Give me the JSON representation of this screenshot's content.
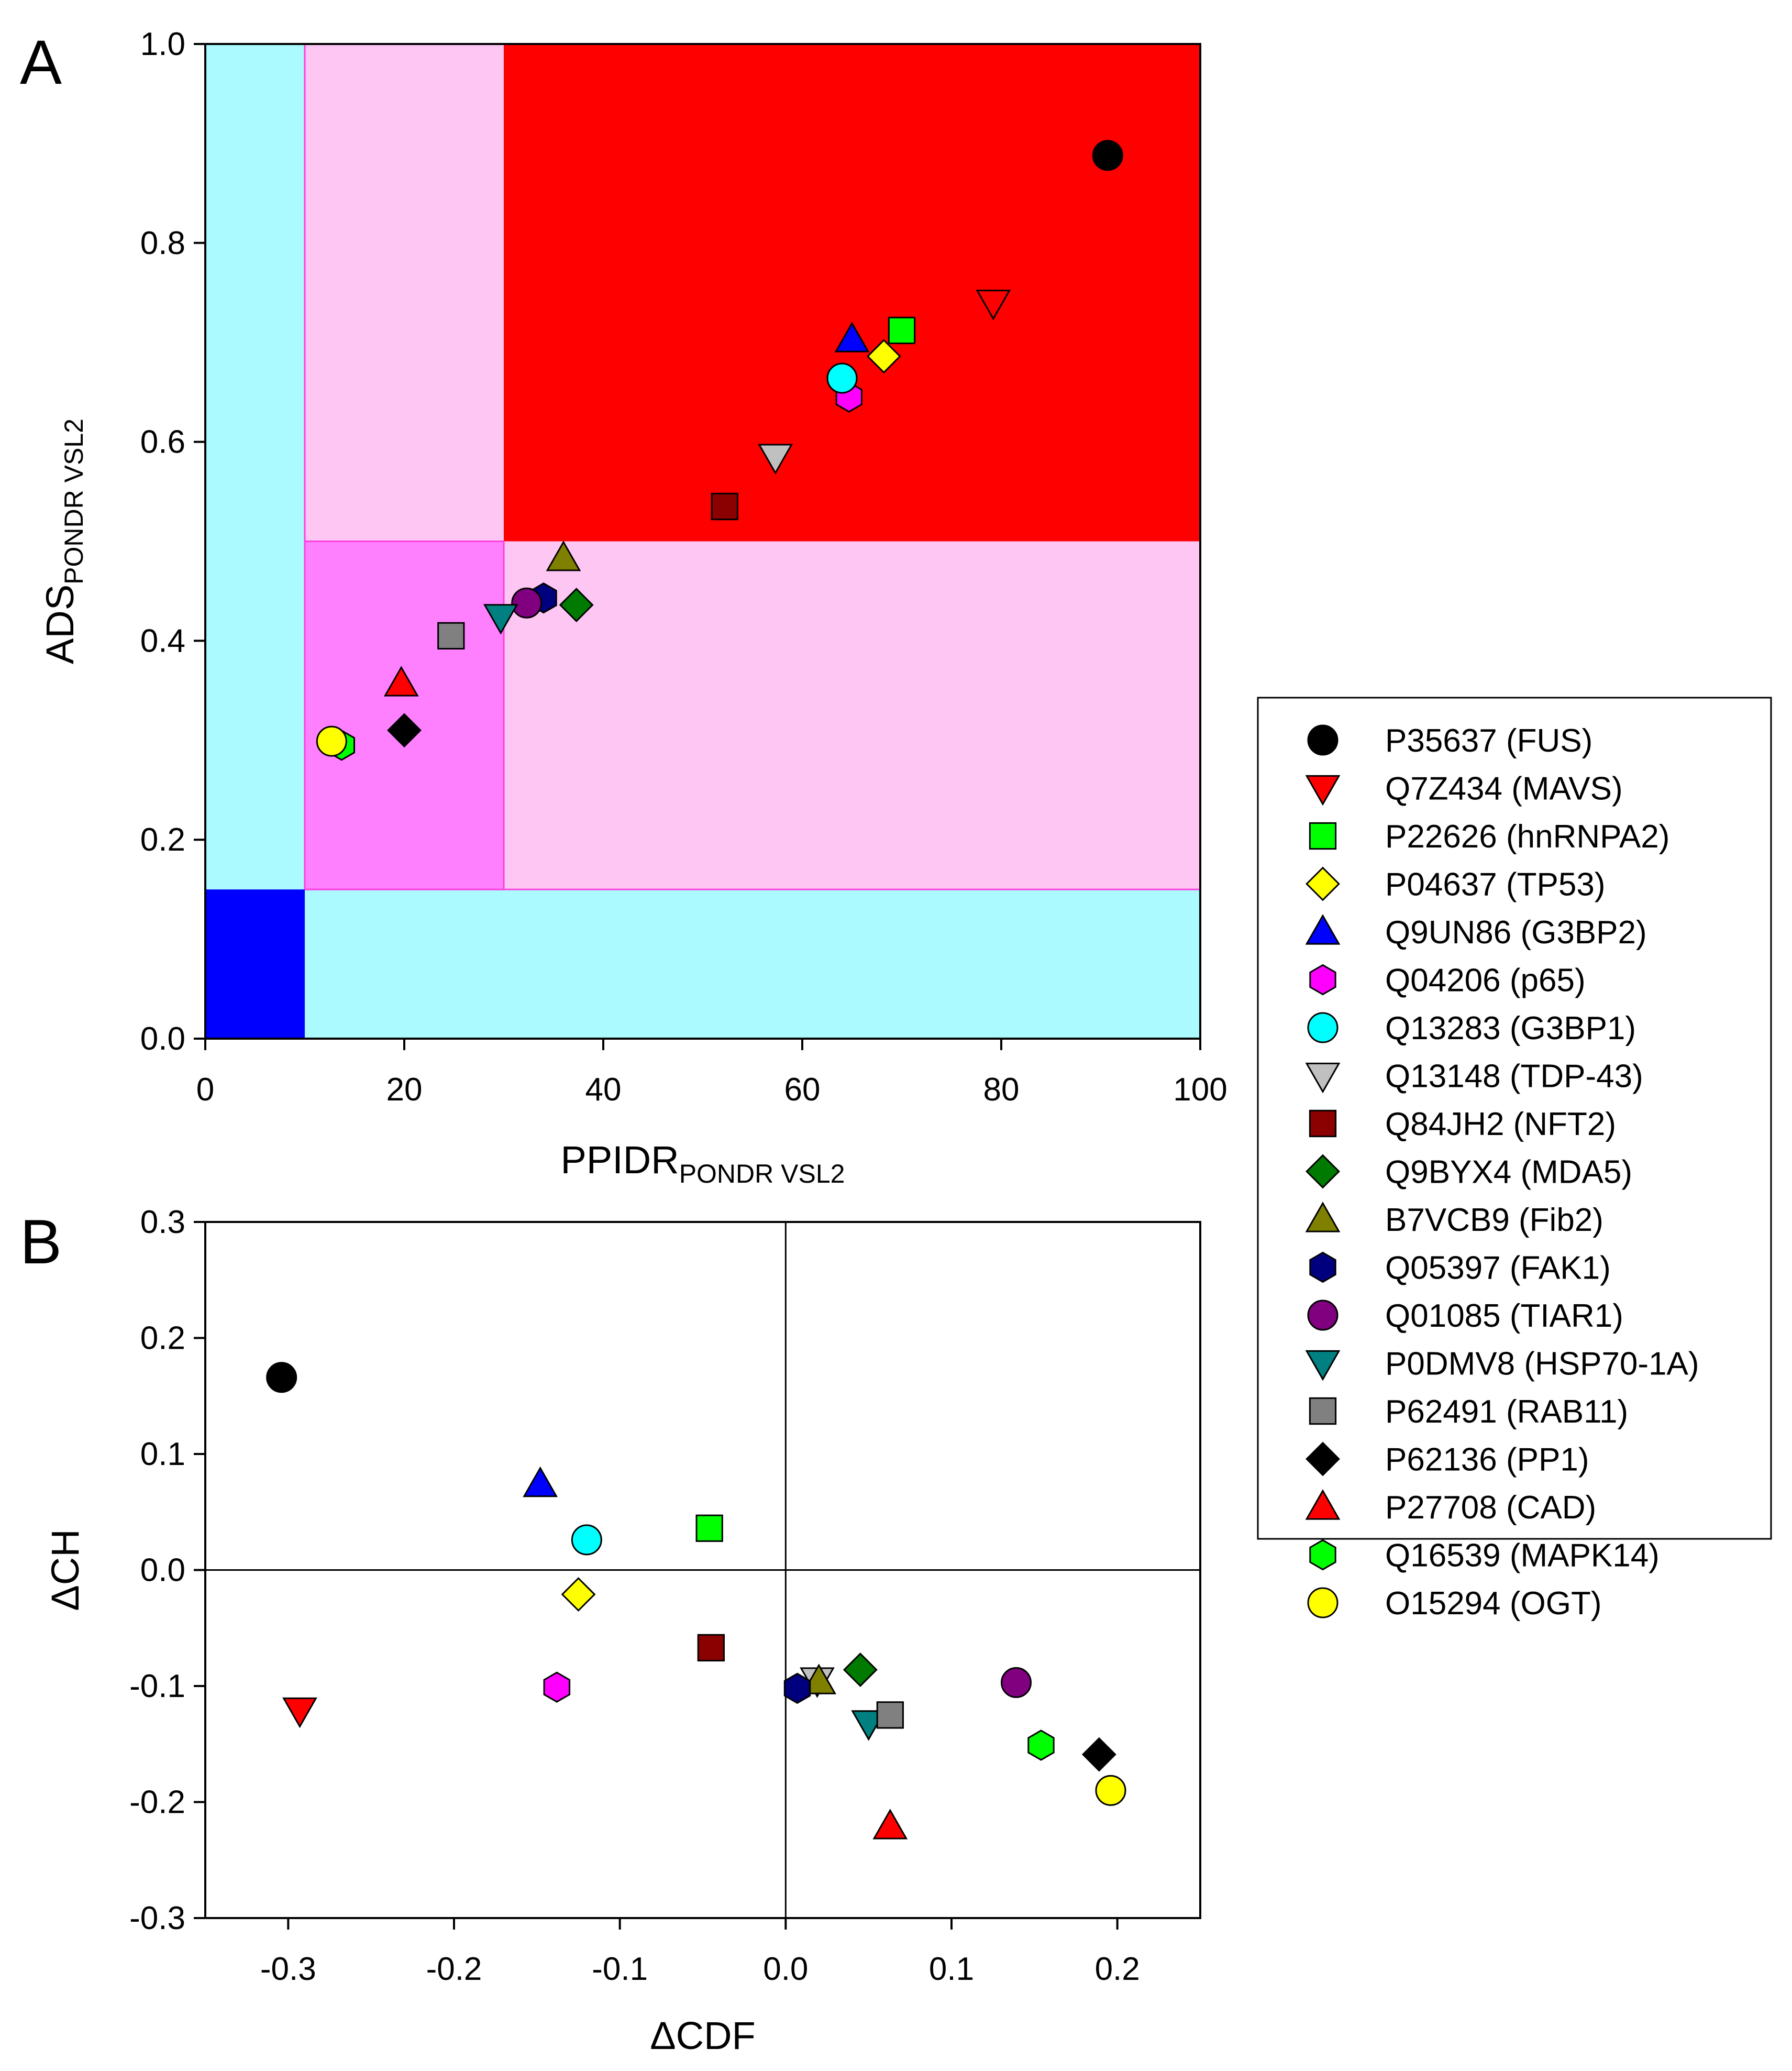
{
  "figure": {
    "panel_labels": [
      "A",
      "B"
    ]
  },
  "colors": {
    "light_cyan": "#aafaff",
    "light_pink": "#fec6f3",
    "magenta_region": "#ff80ff",
    "red_region": "#fe0000",
    "blue_region": "#0000ff",
    "magenta_border": "#ff3fe0"
  },
  "legend": {
    "entries": [
      {
        "label": "P35637 (FUS)",
        "marker": "circle",
        "color": "#000000"
      },
      {
        "label": "Q7Z434 (MAVS)",
        "marker": "triangle-down",
        "color": "#ff0000"
      },
      {
        "label": "P22626 (hnRNPA2)",
        "marker": "square",
        "color": "#00ff00"
      },
      {
        "label": "P04637 (TP53)",
        "marker": "diamond",
        "color": "#ffff00"
      },
      {
        "label": "Q9UN86 (G3BP2)",
        "marker": "triangle-up",
        "color": "#0000ff"
      },
      {
        "label": "Q04206 (p65)",
        "marker": "hexagon",
        "color": "#ff00ff"
      },
      {
        "label": "Q13283 (G3BP1)",
        "marker": "circle",
        "color": "#00ffff"
      },
      {
        "label": "Q13148 (TDP-43)",
        "marker": "triangle-down",
        "color": "#c0c0c0"
      },
      {
        "label": "Q84JH2 (NFT2)",
        "marker": "square",
        "color": "#8b0000"
      },
      {
        "label": "Q9BYX4 (MDA5)",
        "marker": "diamond",
        "color": "#007a00"
      },
      {
        "label": "B7VCB9 (Fib2)",
        "marker": "triangle-up",
        "color": "#808000"
      },
      {
        "label": "Q05397 (FAK1)",
        "marker": "hexagon",
        "color": "#00007f"
      },
      {
        "label": "Q01085 (TIAR1)",
        "marker": "circle",
        "color": "#800080"
      },
      {
        "label": "P0DMV8 (HSP70-1A)",
        "marker": "triangle-down",
        "color": "#008080"
      },
      {
        "label": "P62491 (RAB11)",
        "marker": "square",
        "color": "#808080"
      },
      {
        "label": "P62136 (PP1)",
        "marker": "diamond",
        "color": "#000000"
      },
      {
        "label": "P27708 (CAD)",
        "marker": "triangle-up",
        "color": "#ff0000"
      },
      {
        "label": "Q16539 (MAPK14)",
        "marker": "hexagon",
        "color": "#00ff00"
      },
      {
        "label": "O15294 (OGT)",
        "marker": "circle",
        "color": "#ffff00"
      }
    ]
  },
  "chart_data": [
    {
      "panel": "A",
      "type": "scatter",
      "xlabel": "PPIDR",
      "xlabel_sub": "PONDR VSL2",
      "ylabel": "ADS",
      "ylabel_sub": "PONDR VSL2",
      "xlim": [
        0,
        100
      ],
      "ylim": [
        0.0,
        1.0
      ],
      "xticks": [
        "0",
        "20",
        "40",
        "60",
        "80",
        "100"
      ],
      "yticks": [
        "0.0",
        "0.2",
        "0.4",
        "0.6",
        "0.8",
        "1.0"
      ],
      "regions": [
        {
          "x": [
            0,
            100
          ],
          "y": [
            0,
            1.0
          ],
          "color": "#aafaff"
        },
        {
          "x": [
            10,
            100
          ],
          "y": [
            0.15,
            1.0
          ],
          "color": "#fec6f3"
        },
        {
          "x": [
            30,
            100
          ],
          "y": [
            0.5,
            1.0
          ],
          "color": "#fe0000"
        },
        {
          "x": [
            10,
            30
          ],
          "y": [
            0.15,
            0.5
          ],
          "color": "#ff80ff"
        },
        {
          "x": [
            0,
            10
          ],
          "y": [
            0,
            0.15
          ],
          "color": "#0000ff"
        }
      ],
      "points": [
        {
          "label": "P35637 (FUS)",
          "x": 90.7,
          "y": 0.888
        },
        {
          "label": "Q7Z434 (MAVS)",
          "x": 79.2,
          "y": 0.74
        },
        {
          "label": "P22626 (hnRNPA2)",
          "x": 70.0,
          "y": 0.712
        },
        {
          "label": "P04637 (TP53)",
          "x": 68.2,
          "y": 0.686
        },
        {
          "label": "Q9UN86 (G3BP2)",
          "x": 65.0,
          "y": 0.703
        },
        {
          "label": "Q04206 (p65)",
          "x": 64.7,
          "y": 0.645
        },
        {
          "label": "Q13283 (G3BP1)",
          "x": 64.0,
          "y": 0.664
        },
        {
          "label": "Q13148 (TDP-43)",
          "x": 57.3,
          "y": 0.585
        },
        {
          "label": "Q84JH2 (NFT2)",
          "x": 52.2,
          "y": 0.535
        },
        {
          "label": "Q9BYX4 (MDA5)",
          "x": 37.3,
          "y": 0.436
        },
        {
          "label": "B7VCB9 (Fib2)",
          "x": 36.0,
          "y": 0.483
        },
        {
          "label": "Q05397 (FAK1)",
          "x": 34.0,
          "y": 0.443
        },
        {
          "label": "Q01085 (TIAR1)",
          "x": 32.3,
          "y": 0.438
        },
        {
          "label": "P0DMV8 (HSP70-1A)",
          "x": 29.7,
          "y": 0.424
        },
        {
          "label": "P62491 (RAB11)",
          "x": 24.7,
          "y": 0.405
        },
        {
          "label": "P62136 (PP1)",
          "x": 20.0,
          "y": 0.31
        },
        {
          "label": "P27708 (CAD)",
          "x": 19.7,
          "y": 0.357
        },
        {
          "label": "Q16539 (MAPK14)",
          "x": 13.7,
          "y": 0.295
        },
        {
          "label": "O15294 (OGT)",
          "x": 12.7,
          "y": 0.299
        }
      ]
    },
    {
      "panel": "B",
      "type": "scatter",
      "xlabel": "ΔCDF",
      "ylabel": "ΔCH",
      "xlim": [
        -0.35,
        0.25
      ],
      "ylim": [
        -0.3,
        0.3
      ],
      "xticks": [
        "-0.3",
        "-0.2",
        "-0.1",
        "0.0",
        "0.1",
        "0.2"
      ],
      "yticks": [
        "-0.3",
        "-0.2",
        "-0.1",
        "0.0",
        "0.1",
        "0.2",
        "0.3"
      ],
      "reference_lines": {
        "x": 0,
        "y": 0
      },
      "points": [
        {
          "label": "P35637 (FUS)",
          "x": -0.304,
          "y": 0.166
        },
        {
          "label": "Q7Z434 (MAVS)",
          "x": -0.293,
          "y": -0.121
        },
        {
          "label": "P22626 (hnRNPA2)",
          "x": -0.046,
          "y": 0.036
        },
        {
          "label": "P04637 (TP53)",
          "x": -0.125,
          "y": -0.021
        },
        {
          "label": "Q9UN86 (G3BP2)",
          "x": -0.148,
          "y": 0.074
        },
        {
          "label": "Q04206 (p65)",
          "x": -0.138,
          "y": -0.101
        },
        {
          "label": "Q13283 (G3BP1)",
          "x": -0.12,
          "y": 0.026
        },
        {
          "label": "Q13148 (TDP-43)",
          "x": 0.019,
          "y": -0.095
        },
        {
          "label": "Q84JH2 (NFT2)",
          "x": -0.045,
          "y": -0.067
        },
        {
          "label": "Q9BYX4 (MDA5)",
          "x": 0.045,
          "y": -0.086
        },
        {
          "label": "B7VCB9 (Fib2)",
          "x": 0.02,
          "y": -0.096
        },
        {
          "label": "Q05397 (FAK1)",
          "x": 0.007,
          "y": -0.102
        },
        {
          "label": "Q01085 (TIAR1)",
          "x": 0.139,
          "y": -0.097
        },
        {
          "label": "P0DMV8 (HSP70-1A)",
          "x": 0.05,
          "y": -0.132
        },
        {
          "label": "P62491 (RAB11)",
          "x": 0.063,
          "y": -0.125
        },
        {
          "label": "P62136 (PP1)",
          "x": 0.189,
          "y": -0.159
        },
        {
          "label": "P27708 (CAD)",
          "x": 0.063,
          "y": -0.221
        },
        {
          "label": "Q16539 (MAPK14)",
          "x": 0.154,
          "y": -0.151
        },
        {
          "label": "O15294 (OGT)",
          "x": 0.196,
          "y": -0.19
        }
      ]
    }
  ]
}
